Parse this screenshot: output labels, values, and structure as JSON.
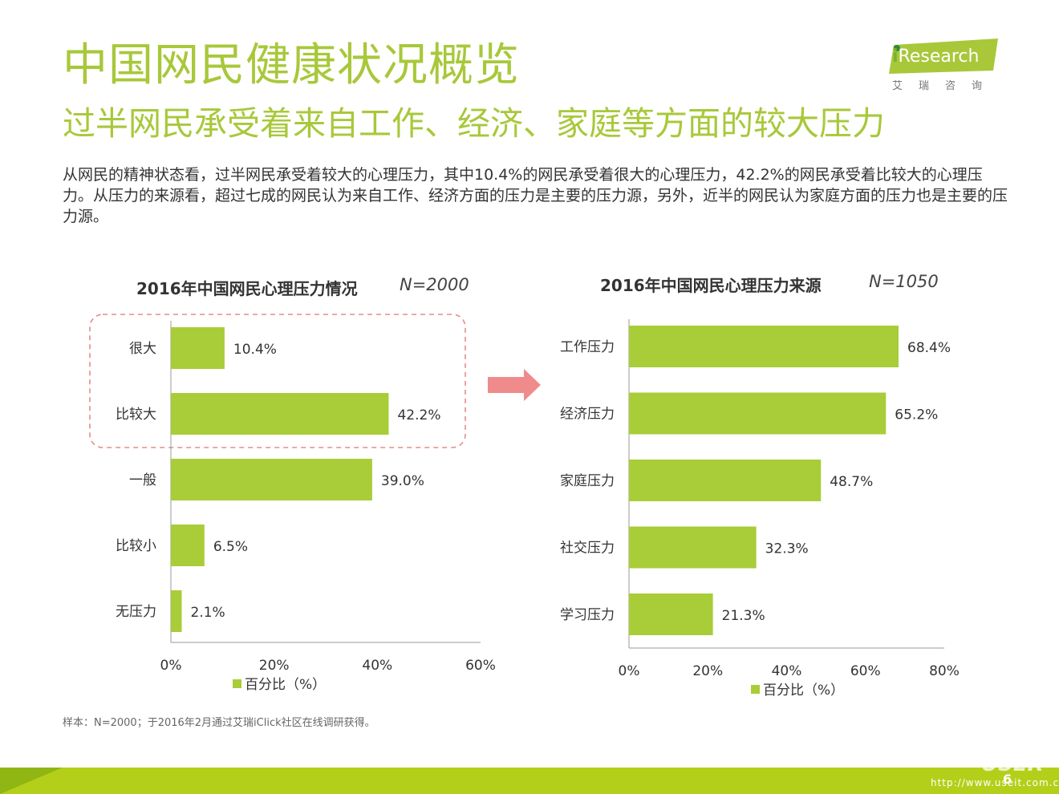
{
  "page": {
    "title": "中国网民健康状况概览",
    "subtitle": "过半网民承受着来自工作、经济、家庭等方面的较大压力",
    "intro": "从网民的精神状态看，过半网民承受着较大的心理压力，其中10.4%的网民承受着很大的心理压力，42.2%的网民承受着比较大的心理压力。从压力的来源看，超过七成的网民认为来自工作、经济方面的压力是主要的压力源，另外，近半的网民认为家庭方面的压力也是主要的压力源。",
    "source_note": "样本：N=2000；于2016年2月通过艾瑞iClick社区在线调研获得。",
    "page_number": "6",
    "watermark": "USER",
    "watermark_url": "http://www.useit.com.cn"
  },
  "logo": {
    "brand": "Research",
    "brand_cn": "艾瑞咨询",
    "color": "#a8c83a"
  },
  "colors": {
    "bar": "#a8cd38",
    "title": "#a8c83a",
    "arrow": "#f08b8b",
    "highlight_border": "#e88a8a",
    "footer": "#b4cf1a"
  },
  "chart_data": [
    {
      "type": "bar",
      "orientation": "horizontal",
      "title": "2016年中国网民心理压力情况",
      "sample": "N=2000",
      "categories": [
        "很大",
        "比较大",
        "一般",
        "比较小",
        "无压力"
      ],
      "values": [
        10.4,
        42.2,
        39.0,
        6.5,
        2.1
      ],
      "value_labels": [
        "10.4%",
        "42.2%",
        "39.0%",
        "6.5%",
        "2.1%"
      ],
      "xlim": [
        0,
        60
      ],
      "ticks": [
        "0%",
        "20%",
        "40%",
        "60%"
      ],
      "legend": "百分比（%）",
      "highlighted_categories": [
        "很大",
        "比较大"
      ],
      "grid": false
    },
    {
      "type": "bar",
      "orientation": "horizontal",
      "title": "2016年中国网民心理压力来源",
      "sample": "N=1050",
      "categories": [
        "工作压力",
        "经济压力",
        "家庭压力",
        "社交压力",
        "学习压力"
      ],
      "values": [
        68.4,
        65.2,
        48.7,
        32.3,
        21.3
      ],
      "value_labels": [
        "68.4%",
        "65.2%",
        "48.7%",
        "32.3%",
        "21.3%"
      ],
      "xlim": [
        0,
        80
      ],
      "ticks": [
        "0%",
        "20%",
        "40%",
        "60%",
        "80%"
      ],
      "legend": "百分比（%）",
      "grid": false
    }
  ]
}
